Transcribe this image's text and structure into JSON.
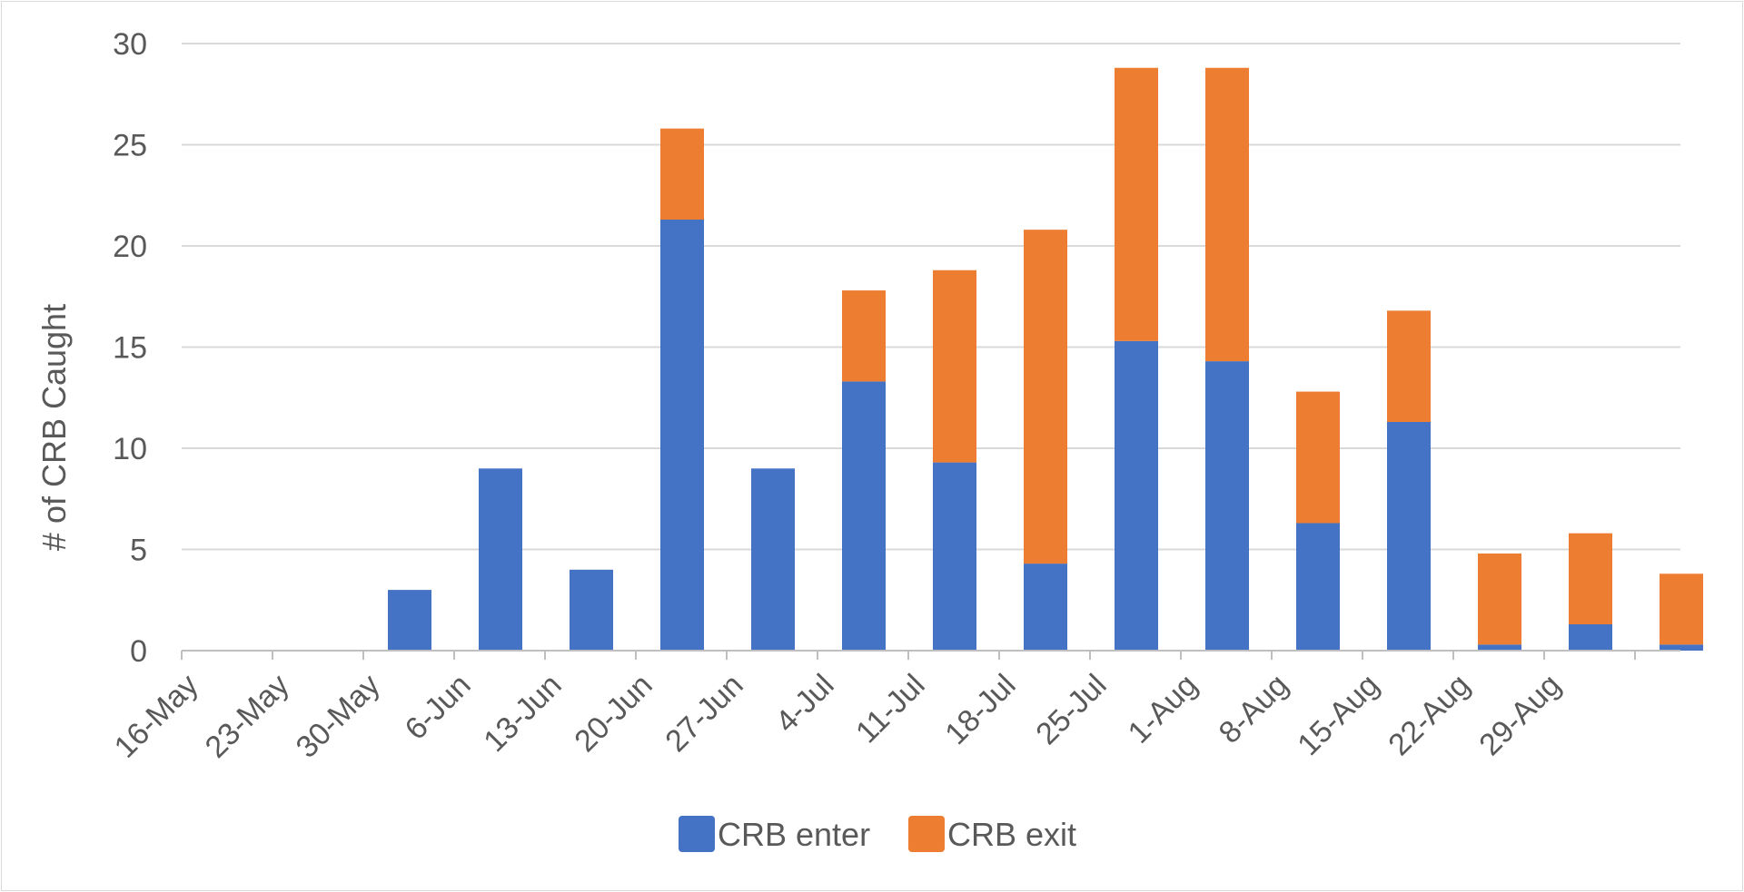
{
  "chart_data": {
    "type": "bar",
    "stacked": true,
    "title": "",
    "xlabel": "",
    "ylabel": "# of CRB Caught",
    "ylim": [
      0,
      30
    ],
    "yticks": [
      0,
      5,
      10,
      15,
      20,
      25,
      30
    ],
    "grid": true,
    "legend_position": "bottom",
    "categories": [
      "16-May",
      "23-May",
      "30-May",
      "6-Jun",
      "13-Jun",
      "20-Jun",
      "27-Jun",
      "4-Jul",
      "11-Jul",
      "18-Jul",
      "25-Jul",
      "1-Aug",
      "8-Aug",
      "15-Aug",
      "22-Aug",
      "29-Aug",
      ""
    ],
    "series": [
      {
        "name": "CRB enter",
        "color": "#4472C4",
        "values": [
          0,
          0,
          3,
          9,
          4,
          21.3,
          9,
          13.3,
          9.3,
          4.3,
          15.3,
          14.3,
          6.3,
          11.3,
          0.3,
          1.3,
          0.3
        ]
      },
      {
        "name": "CRB exit",
        "color": "#ED7D31",
        "values": [
          0,
          0,
          0,
          0,
          0,
          4.5,
          0,
          4.5,
          9.5,
          16.5,
          13.5,
          14.5,
          6.5,
          5.5,
          4.5,
          4.5,
          3.5
        ]
      }
    ]
  }
}
